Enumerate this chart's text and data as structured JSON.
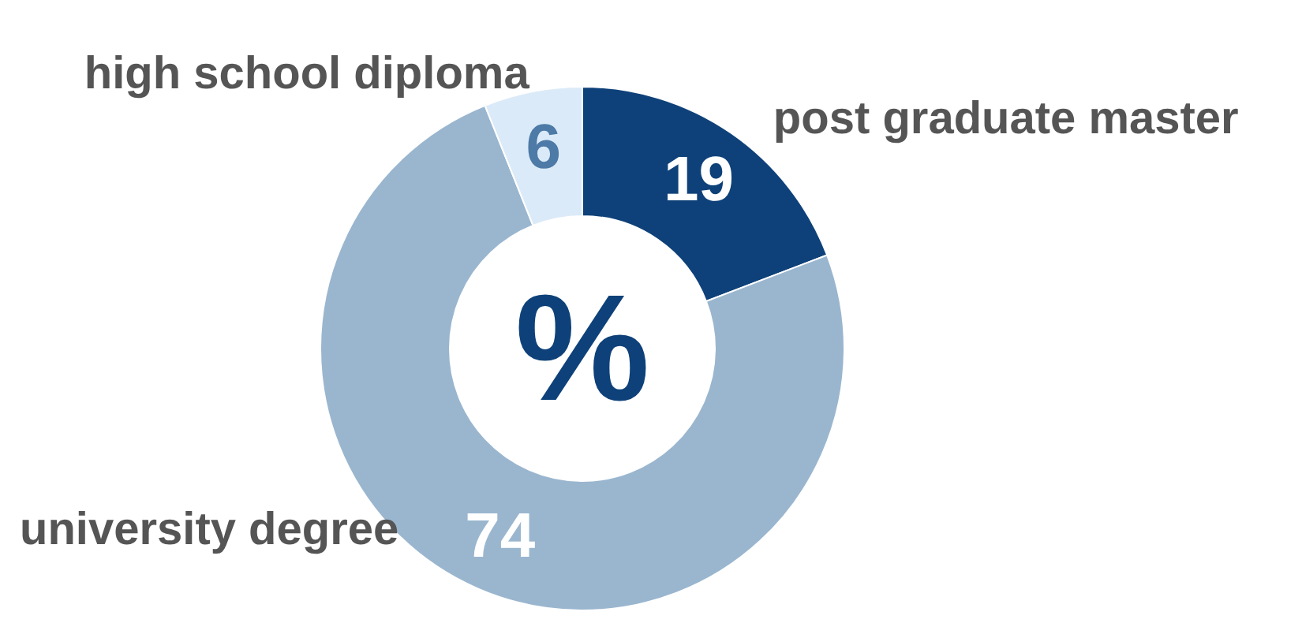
{
  "chart_data": {
    "type": "donut",
    "categories": [
      "post graduate master",
      "university degree",
      "high school diploma"
    ],
    "values": [
      19,
      74,
      6
    ],
    "colors": [
      "#0e4179",
      "#9ab6cf",
      "#dbeaf8"
    ],
    "data_labels": true,
    "annotations": [
      "%"
    ]
  }
}
